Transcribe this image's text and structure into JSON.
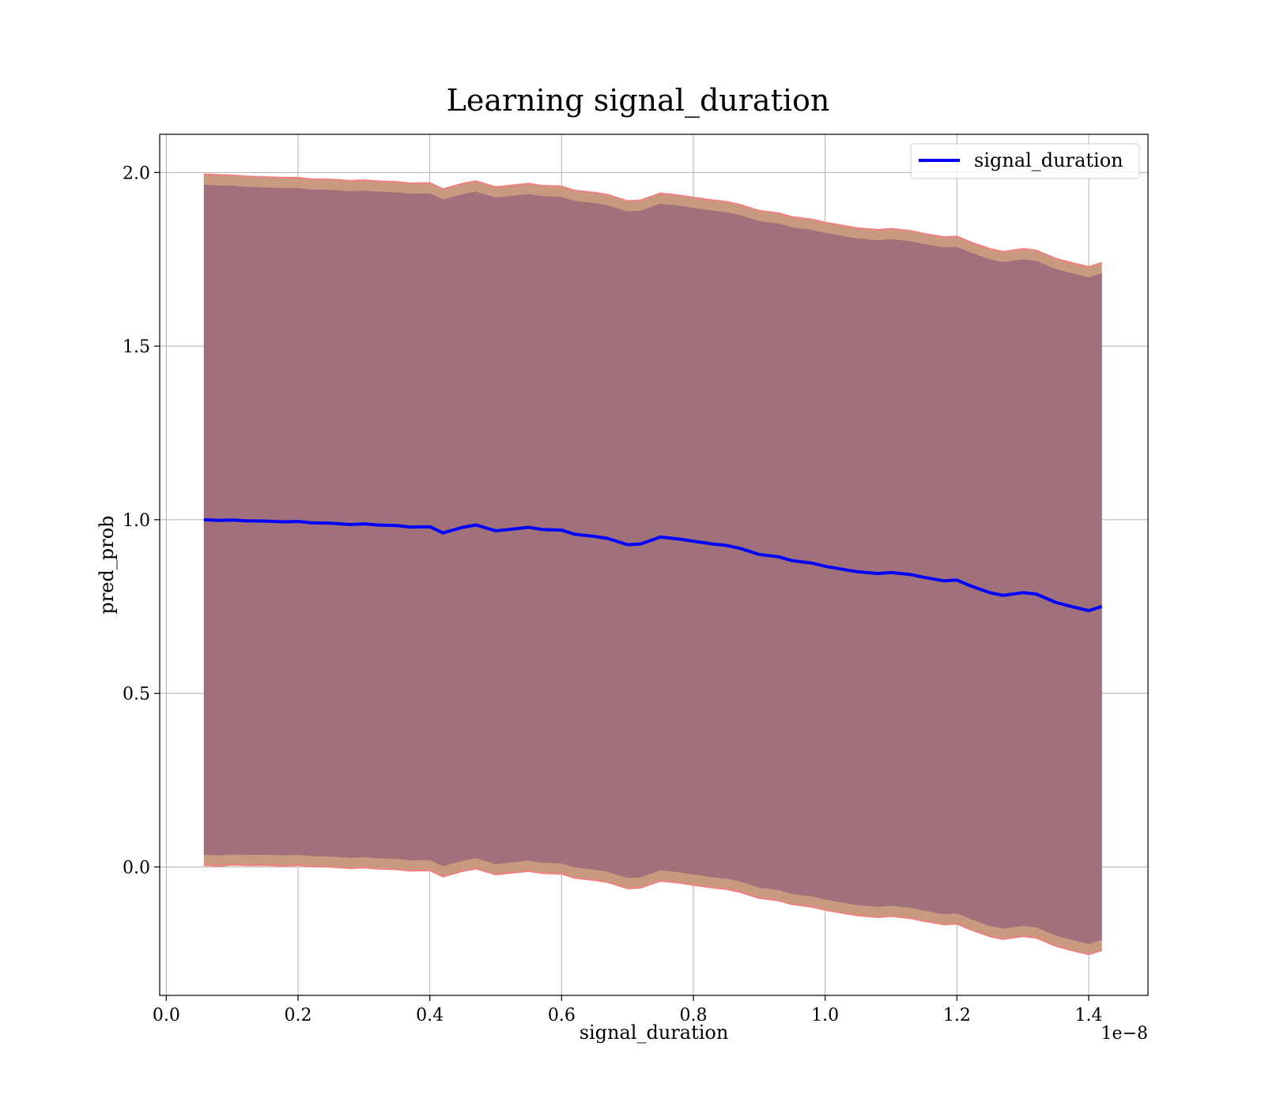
{
  "chart_data": {
    "type": "line",
    "title": "Learning signal_duration",
    "xlabel": "signal_duration",
    "ylabel": "pred_prob",
    "x_offset_label": "1e−8",
    "xlim": [
      -0.01,
      1.49
    ],
    "ylim": [
      -0.37,
      2.11
    ],
    "x_ticks": [
      0.0,
      0.2,
      0.4,
      0.6,
      0.8,
      1.0,
      1.2,
      1.4
    ],
    "x_tick_labels": [
      "0.0",
      "0.2",
      "0.4",
      "0.6",
      "0.8",
      "1.0",
      "1.2",
      "1.4"
    ],
    "y_ticks": [
      0.0,
      0.5,
      1.0,
      1.5,
      2.0
    ],
    "y_tick_labels": [
      "0.0",
      "0.5",
      "1.0",
      "1.5",
      "2.0"
    ],
    "grid": true,
    "legend_position": "top-right",
    "colors": {
      "line": "#0000ff",
      "inner_band": "#a1717b",
      "outer_band": "#c99a80",
      "band_edge": "#f08080"
    },
    "x": [
      0.057,
      0.08,
      0.1,
      0.12,
      0.15,
      0.18,
      0.2,
      0.22,
      0.25,
      0.28,
      0.3,
      0.32,
      0.35,
      0.37,
      0.4,
      0.42,
      0.45,
      0.47,
      0.5,
      0.52,
      0.55,
      0.57,
      0.6,
      0.62,
      0.65,
      0.67,
      0.7,
      0.72,
      0.75,
      0.78,
      0.8,
      0.83,
      0.85,
      0.87,
      0.9,
      0.93,
      0.95,
      0.98,
      1.0,
      1.03,
      1.05,
      1.08,
      1.1,
      1.13,
      1.15,
      1.18,
      1.2,
      1.22,
      1.25,
      1.27,
      1.3,
      1.32,
      1.35,
      1.37,
      1.4,
      1.42
    ],
    "series": [
      {
        "name": "signal_duration",
        "values": [
          1.0,
          0.998,
          0.999,
          0.997,
          0.996,
          0.994,
          0.995,
          0.991,
          0.99,
          0.986,
          0.988,
          0.985,
          0.983,
          0.979,
          0.98,
          0.962,
          0.978,
          0.985,
          0.968,
          0.972,
          0.978,
          0.972,
          0.97,
          0.958,
          0.952,
          0.946,
          0.928,
          0.93,
          0.95,
          0.944,
          0.938,
          0.93,
          0.926,
          0.918,
          0.9,
          0.893,
          0.882,
          0.875,
          0.866,
          0.856,
          0.85,
          0.845,
          0.848,
          0.842,
          0.834,
          0.824,
          0.826,
          0.81,
          0.79,
          0.782,
          0.79,
          0.786,
          0.762,
          0.752,
          0.738,
          0.75
        ],
        "upper": [
          1.995,
          1.993,
          1.992,
          1.989,
          1.987,
          1.985,
          1.985,
          1.981,
          1.98,
          1.976,
          1.978,
          1.975,
          1.973,
          1.969,
          1.97,
          1.952,
          1.968,
          1.975,
          1.958,
          1.962,
          1.968,
          1.962,
          1.96,
          1.948,
          1.942,
          1.936,
          1.918,
          1.92,
          1.94,
          1.934,
          1.928,
          1.92,
          1.916,
          1.908,
          1.89,
          1.883,
          1.872,
          1.865,
          1.856,
          1.846,
          1.84,
          1.835,
          1.838,
          1.832,
          1.824,
          1.814,
          1.816,
          1.8,
          1.78,
          1.772,
          1.78,
          1.776,
          1.752,
          1.742,
          1.728,
          1.74
        ],
        "lower": [
          0.005,
          0.003,
          0.006,
          0.005,
          0.005,
          0.003,
          0.005,
          0.001,
          0.0,
          -0.004,
          -0.002,
          -0.005,
          -0.007,
          -0.011,
          -0.01,
          -0.028,
          -0.012,
          -0.005,
          -0.022,
          -0.018,
          -0.012,
          -0.018,
          -0.02,
          -0.032,
          -0.038,
          -0.044,
          -0.062,
          -0.06,
          -0.04,
          -0.046,
          -0.052,
          -0.06,
          -0.064,
          -0.072,
          -0.09,
          -0.097,
          -0.108,
          -0.115,
          -0.124,
          -0.134,
          -0.14,
          -0.145,
          -0.142,
          -0.148,
          -0.156,
          -0.166,
          -0.164,
          -0.18,
          -0.2,
          -0.208,
          -0.2,
          -0.204,
          -0.228,
          -0.238,
          -0.252,
          -0.24
        ],
        "inner_upper": [
          1.965,
          1.963,
          1.962,
          1.959,
          1.957,
          1.955,
          1.955,
          1.951,
          1.95,
          1.946,
          1.948,
          1.945,
          1.943,
          1.939,
          1.94,
          1.922,
          1.938,
          1.945,
          1.928,
          1.932,
          1.938,
          1.932,
          1.93,
          1.918,
          1.912,
          1.906,
          1.888,
          1.89,
          1.91,
          1.904,
          1.898,
          1.89,
          1.886,
          1.878,
          1.86,
          1.853,
          1.842,
          1.835,
          1.826,
          1.816,
          1.81,
          1.805,
          1.808,
          1.802,
          1.794,
          1.784,
          1.786,
          1.77,
          1.75,
          1.742,
          1.75,
          1.746,
          1.722,
          1.712,
          1.698,
          1.71
        ],
        "inner_lower": [
          0.035,
          0.033,
          0.036,
          0.035,
          0.035,
          0.033,
          0.035,
          0.031,
          0.03,
          0.026,
          0.028,
          0.025,
          0.023,
          0.019,
          0.02,
          0.002,
          0.018,
          0.025,
          0.008,
          0.012,
          0.018,
          0.012,
          0.01,
          -0.002,
          -0.008,
          -0.014,
          -0.032,
          -0.03,
          -0.01,
          -0.016,
          -0.022,
          -0.03,
          -0.034,
          -0.042,
          -0.06,
          -0.067,
          -0.078,
          -0.085,
          -0.094,
          -0.104,
          -0.11,
          -0.115,
          -0.112,
          -0.118,
          -0.126,
          -0.136,
          -0.134,
          -0.15,
          -0.17,
          -0.178,
          -0.17,
          -0.174,
          -0.198,
          -0.208,
          -0.222,
          -0.21
        ]
      }
    ]
  }
}
